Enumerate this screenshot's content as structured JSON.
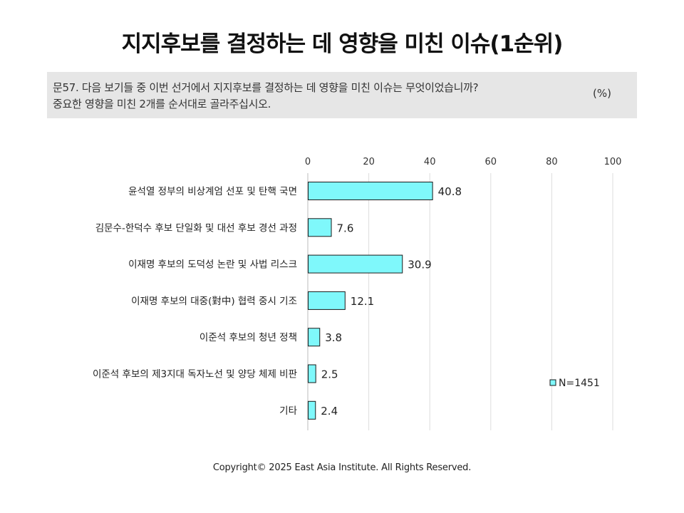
{
  "title": "지지후보를 결정하는 데 영향을 미친 이슈(1순위)",
  "question": {
    "line1": "문57. 다음 보기들 중 이번 선거에서 지지후보를 결정하는 데 영향을 미친 이슈는 무엇이었습니까?",
    "line2": "중요한 영향을 미친 2개를 순서대로 골라주십시오.",
    "unit": "(%)"
  },
  "copyright": "Copyright© 2025 East Asia Institute. All Rights Reserved.",
  "chart_data": {
    "type": "bar",
    "orientation": "horizontal",
    "categories": [
      "윤석열 정부의 비상계엄 선포 및 탄핵 국면",
      "김문수-한덕수 후보 단일화 및 대선 후보 경선 과정",
      "이재명 후보의 도덕성 논란 및 사법 리스크",
      "이재명 후보의 대중(對中) 협력 중시 기조",
      "이준석 후보의 청년 정책",
      "이준석 후보의 제3지대 독자노선 및 양당 체제 비판",
      "기타"
    ],
    "series": [
      {
        "name": "N=1451",
        "values": [
          40.8,
          7.6,
          30.9,
          12.1,
          3.8,
          2.5,
          2.4
        ],
        "labels": [
          "40.8",
          "7.6",
          "30.9",
          "12.1",
          "3.8",
          "2.5",
          "2.4"
        ],
        "color": "#7ff8fb",
        "stroke": "#1a1a1a"
      }
    ],
    "xlim": [
      0,
      100
    ],
    "xticks": [
      0,
      20,
      40,
      60,
      80,
      100
    ],
    "x_axis_position": "top",
    "grid": true,
    "grid_color": "#dddddd",
    "legend": "right"
  }
}
